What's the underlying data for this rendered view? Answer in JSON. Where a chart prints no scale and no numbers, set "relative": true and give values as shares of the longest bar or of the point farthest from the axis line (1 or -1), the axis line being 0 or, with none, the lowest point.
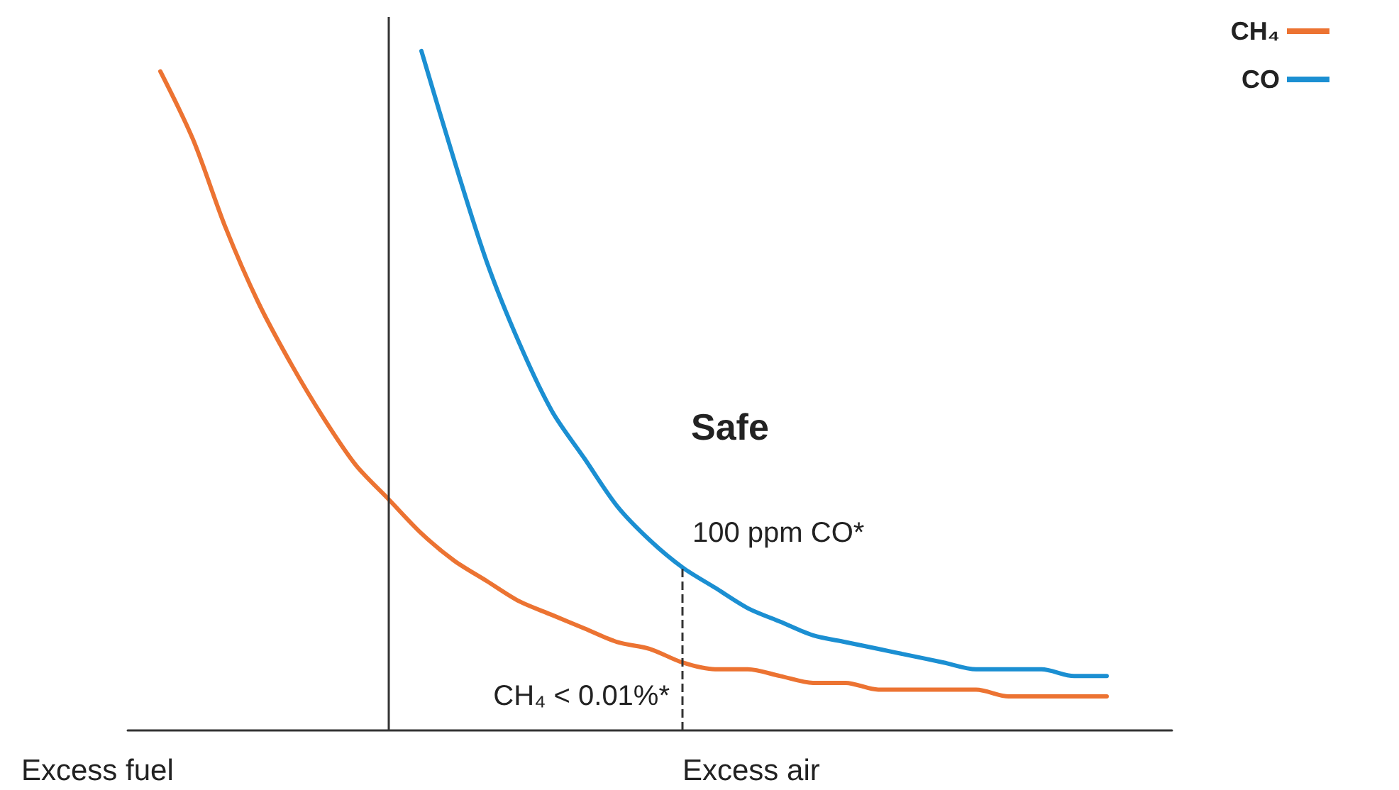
{
  "chart_data": {
    "type": "line",
    "relative": true,
    "categories": [
      null,
      null,
      null,
      null,
      null,
      null,
      null,
      null,
      null,
      null,
      null,
      null,
      null,
      null,
      null,
      null,
      null,
      null,
      null,
      null,
      null,
      null,
      null,
      null,
      null,
      null,
      null,
      null,
      null,
      null,
      null,
      null,
      null
    ],
    "series": [
      {
        "name": "CH₄",
        "color": "#ec7332",
        "values": [
          null,
          0.97,
          0.87,
          0.74,
          0.63,
          0.54,
          0.46,
          0.39,
          0.34,
          0.29,
          0.25,
          0.22,
          0.19,
          0.17,
          0.15,
          0.13,
          0.12,
          0.1,
          0.09,
          0.09,
          0.08,
          0.07,
          0.07,
          0.06,
          0.06,
          0.06,
          0.06,
          0.05,
          0.05,
          0.05,
          0.05,
          null,
          null
        ]
      },
      {
        "name": "CO",
        "color": "#1b8fd2",
        "values": [
          null,
          null,
          null,
          null,
          null,
          null,
          null,
          null,
          null,
          1,
          0.84,
          0.69,
          0.57,
          0.47,
          0.4,
          0.33,
          0.28,
          0.24,
          0.21,
          0.18,
          0.16,
          0.14,
          0.13,
          0.12,
          0.11,
          0.1,
          0.09,
          0.09,
          0.09,
          0.08,
          0.08,
          null,
          null
        ]
      }
    ],
    "annotations": [
      "Safe",
      "100 ppm CO*",
      "CH₄ < 0.01%*",
      "Excess fuel",
      "Excess air"
    ],
    "legend": "top right",
    "grid": false,
    "marker": "none",
    "line_style": "solid"
  }
}
